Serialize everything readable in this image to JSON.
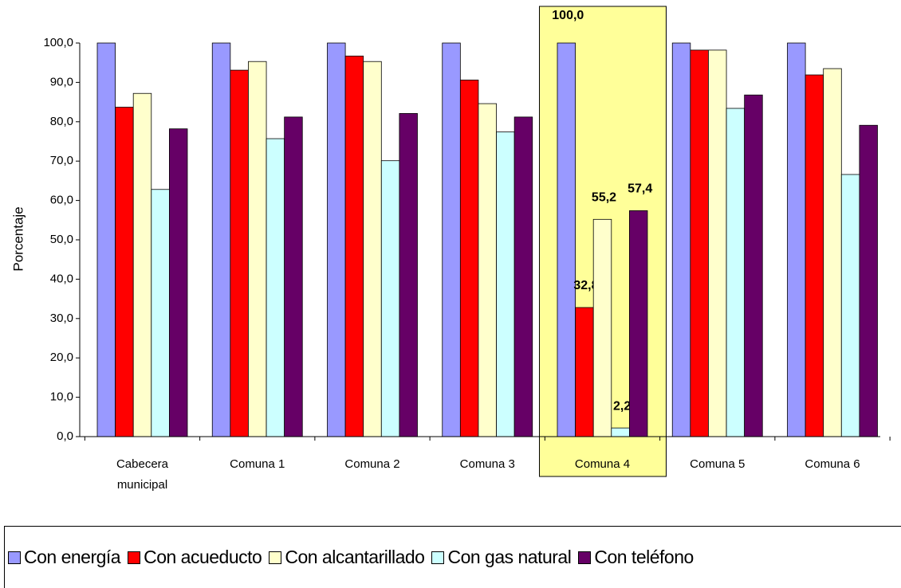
{
  "chart_data": {
    "type": "bar",
    "y_label": "Porcentaje",
    "categories": [
      "Cabecera municipal",
      "Comuna 1",
      "Comuna 2",
      "Comuna 3",
      "Comuna 4",
      "Comuna 5",
      "Comuna 6"
    ],
    "series": [
      {
        "name": "Con energía",
        "color": "#9999ff",
        "values": [
          100,
          100,
          100,
          100,
          100,
          100,
          100
        ],
        "value_labels": [
          null,
          null,
          null,
          null,
          "100,0",
          null,
          null
        ]
      },
      {
        "name": "Con acueducto",
        "color": "#ff0000",
        "values": [
          83.7,
          93.1,
          96.7,
          90.6,
          32.8,
          98.2,
          91.9
        ],
        "value_labels": [
          null,
          null,
          null,
          null,
          "32,8",
          null,
          null
        ]
      },
      {
        "name": "Con alcantarillado",
        "color": "#ffffcc",
        "values": [
          87.2,
          95.3,
          95.3,
          84.6,
          55.2,
          98.2,
          93.5
        ],
        "value_labels": [
          null,
          null,
          null,
          null,
          "55,2",
          null,
          null
        ]
      },
      {
        "name": "Con gas natural",
        "color": "#ccffff",
        "values": [
          62.8,
          75.7,
          70.1,
          77.4,
          2.2,
          83.4,
          66.6
        ],
        "value_labels": [
          null,
          null,
          null,
          null,
          "2,2",
          null,
          null
        ]
      },
      {
        "name": "Con teléfono",
        "color": "#660066",
        "values": [
          78.2,
          81.2,
          82.1,
          81.2,
          57.4,
          86.8,
          79.1
        ],
        "value_labels": [
          null,
          null,
          null,
          null,
          "57,4",
          null,
          null
        ]
      }
    ],
    "ylim": [
      0,
      100
    ],
    "yticks": [
      {
        "value": 0,
        "label": "0,0"
      },
      {
        "value": 10,
        "label": "10,0"
      },
      {
        "value": 20,
        "label": "20,0"
      },
      {
        "value": 30,
        "label": "30,0"
      },
      {
        "value": 40,
        "label": "40,0"
      },
      {
        "value": 50,
        "label": "50,0"
      },
      {
        "value": 60,
        "label": "60,0"
      },
      {
        "value": 70,
        "label": "70,0"
      },
      {
        "value": 80,
        "label": "80,0"
      },
      {
        "value": 90,
        "label": "90,0"
      },
      {
        "value": 100,
        "label": "100,0"
      }
    ],
    "legend": "bottom"
  }
}
